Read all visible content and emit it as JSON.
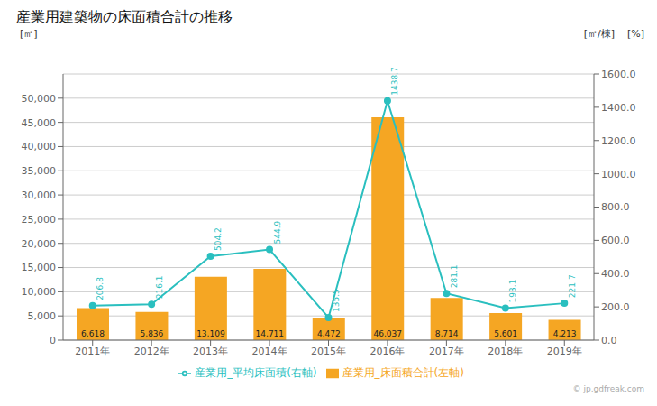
{
  "chart_data": {
    "type": "bar",
    "title": "産業用建築物の床面積合計の推移",
    "categories": [
      "2011年",
      "2012年",
      "2013年",
      "2014年",
      "2015年",
      "2016年",
      "2017年",
      "2018年",
      "2019年"
    ],
    "series": [
      {
        "name": "産業用_床面積合計(左軸)",
        "type": "bar",
        "color": "#f5a623",
        "values": [
          6618,
          5836,
          13109,
          14711,
          4472,
          46037,
          8714,
          5601,
          4213
        ],
        "value_labels": [
          "6,618",
          "5,836",
          "13,109",
          "14,711",
          "4,472",
          "46,037",
          "8,714",
          "5,601",
          "4,213"
        ]
      },
      {
        "name": "産業用_平均床面積(右軸)",
        "type": "line",
        "color": "#2abfbf",
        "marker": "circle",
        "axis": "y2",
        "values": [
          206.8,
          216.1,
          504.2,
          544.9,
          135.5,
          1438.7,
          281.1,
          193.1,
          221.7
        ]
      }
    ],
    "ylabel": "[㎡]",
    "y2label": "[㎡/棟]",
    "annotations": [
      "[%]",
      "© jp.gdfreak.com"
    ],
    "ylim": [
      0,
      55000
    ],
    "yticks": [
      0,
      {
        "value": 5000,
        "label": "5,000"
      },
      {
        "value": 10000,
        "label": "10,000"
      },
      {
        "value": 15000,
        "label": "15,000"
      },
      {
        "value": 20000,
        "label": "20,000"
      },
      {
        "value": 25000,
        "label": "25,000"
      },
      {
        "value": 30000,
        "label": "30,000"
      },
      {
        "value": 35000,
        "label": "35,000"
      },
      {
        "value": 40000,
        "label": "40,000"
      },
      {
        "value": 45000,
        "label": "45,000"
      },
      {
        "value": 50000,
        "label": "50,000"
      }
    ],
    "y2lim": [
      0,
      1600
    ],
    "y2ticks": [
      {
        "value": 0,
        "label": "0.0"
      },
      {
        "value": 200,
        "label": "200.0"
      },
      {
        "value": 400,
        "label": "400.0"
      },
      {
        "value": 600,
        "label": "600.0"
      },
      {
        "value": 800,
        "label": "800.0"
      },
      {
        "value": 1000,
        "label": "1000.0"
      },
      {
        "value": 1200,
        "label": "1200.0"
      },
      {
        "value": 1400,
        "label": "1400.0"
      },
      {
        "value": 1600,
        "label": "1600.0"
      }
    ],
    "grid": true,
    "legend": "bottom",
    "data_labels": true
  }
}
